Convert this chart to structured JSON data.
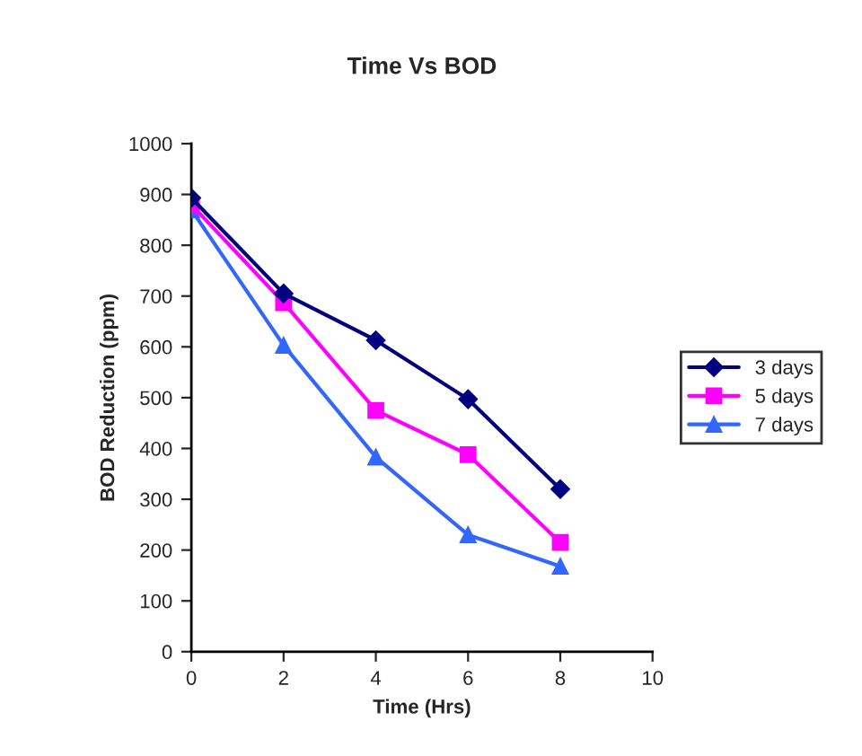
{
  "chart_data": {
    "type": "line",
    "title": "Time Vs BOD",
    "xlabel": "Time (Hrs)",
    "ylabel": "BOD Reduction (ppm)",
    "x": [
      0,
      2,
      4,
      6,
      8
    ],
    "series": [
      {
        "name": "3 days",
        "color": "#000080",
        "marker": "diamond",
        "values": [
          893,
          705,
          613,
          497,
          320
        ]
      },
      {
        "name": "5 days",
        "color": "#ff00ff",
        "marker": "square",
        "values": [
          880,
          687,
          475,
          388,
          215
        ]
      },
      {
        "name": "7 days",
        "color": "#3366ff",
        "marker": "triangle",
        "values": [
          870,
          603,
          383,
          230,
          168
        ]
      }
    ],
    "xlim": [
      0,
      10
    ],
    "xticks": [
      0,
      2,
      4,
      6,
      8,
      10
    ],
    "ylim": [
      0,
      1000
    ],
    "yticks": [
      0,
      100,
      200,
      300,
      400,
      500,
      600,
      700,
      800,
      900,
      1000
    ],
    "grid": false,
    "legend": "right",
    "line_style": "solid"
  }
}
